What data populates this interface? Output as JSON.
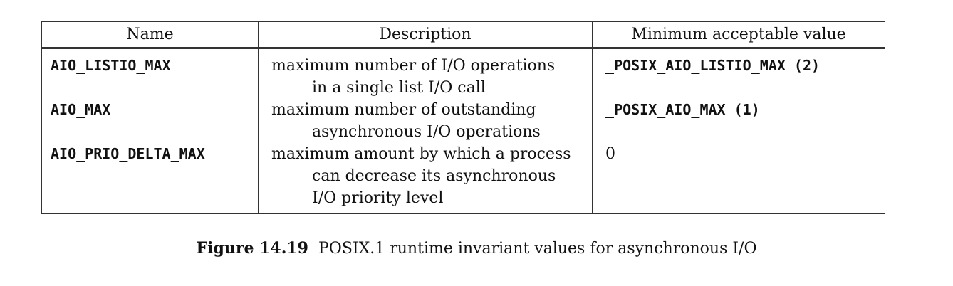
{
  "table": {
    "headers": [
      "Name",
      "Description",
      "Minimum acceptable value"
    ],
    "rows": [
      {
        "name": "AIO_LISTIO_MAX",
        "description": [
          "maximum number of I/O operations",
          "in a single list I/O call"
        ],
        "value": "_POSIX_AIO_LISTIO_MAX (2)"
      },
      {
        "name": "AIO_MAX",
        "description": [
          "maximum number of outstanding",
          "asynchronous I/O operations"
        ],
        "value": "_POSIX_AIO_MAX (1)"
      },
      {
        "name": "AIO_PRIO_DELTA_MAX",
        "description": [
          "maximum amount by which a process",
          "can decrease its asynchronous",
          "I/O priority level"
        ],
        "value": "0"
      }
    ]
  },
  "caption": {
    "figure_label": "Figure 14.19",
    "text": "POSIX.1 runtime invariant values for asynchronous I/O"
  }
}
